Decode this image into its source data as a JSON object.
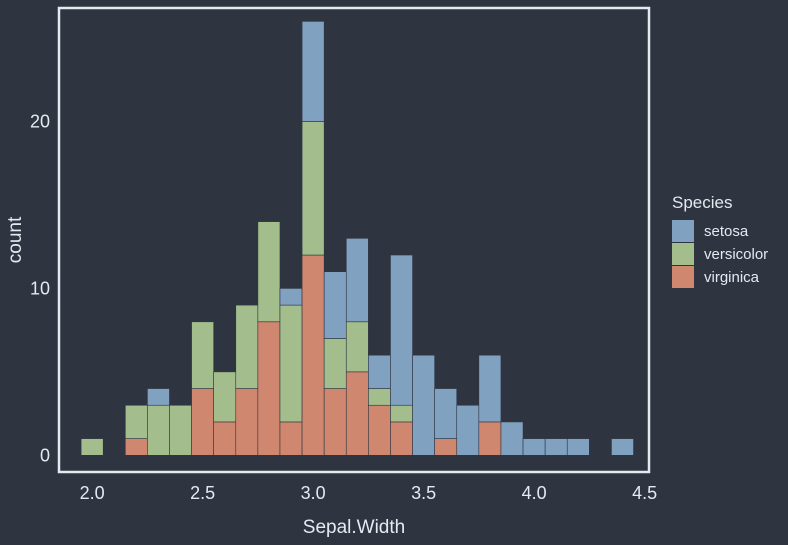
{
  "chart_data": {
    "type": "bar",
    "stacked": true,
    "xlabel": "Sepal.Width",
    "ylabel": "count",
    "xlim": [
      1.85,
      4.52
    ],
    "ylim": [
      -1.0,
      26.8
    ],
    "x_ticks": [
      "2.0",
      "2.5",
      "3.0",
      "3.5",
      "4.0",
      "4.5"
    ],
    "y_ticks": [
      "0",
      "10",
      "20"
    ],
    "bin_width": 0.1,
    "bins": [
      2.0,
      2.1,
      2.2,
      2.3,
      2.4,
      2.5,
      2.6,
      2.7,
      2.8,
      2.9,
      3.0,
      3.1,
      3.2,
      3.3,
      3.4,
      3.5,
      3.6,
      3.7,
      3.8,
      3.9,
      4.0,
      4.1,
      4.2,
      4.3,
      4.4
    ],
    "legend_title": "Species",
    "legend_position": "right",
    "series": [
      {
        "name": "virginica",
        "color": "#d08770",
        "values": [
          0,
          0,
          1,
          0,
          0,
          4,
          2,
          4,
          8,
          2,
          12,
          4,
          5,
          3,
          2,
          0,
          1,
          0,
          2,
          0,
          0,
          0,
          0,
          0,
          0
        ]
      },
      {
        "name": "versicolor",
        "color": "#a3be8c",
        "values": [
          1,
          0,
          2,
          3,
          3,
          4,
          3,
          5,
          6,
          7,
          8,
          3,
          3,
          1,
          1,
          0,
          0,
          0,
          0,
          0,
          0,
          0,
          0,
          0,
          0
        ]
      },
      {
        "name": "setosa",
        "color": "#81a1c1",
        "values": [
          0,
          0,
          0,
          1,
          0,
          0,
          0,
          0,
          0,
          1,
          6,
          4,
          5,
          2,
          9,
          6,
          3,
          3,
          4,
          2,
          1,
          1,
          1,
          0,
          1
        ]
      }
    ],
    "legend_order": [
      "setosa",
      "versicolor",
      "virginica"
    ],
    "colors": {
      "background": "#2e3440",
      "panel_border": "#e5e9f0",
      "text": "#e5e9f0",
      "bar_outline": "#2e3440"
    }
  }
}
